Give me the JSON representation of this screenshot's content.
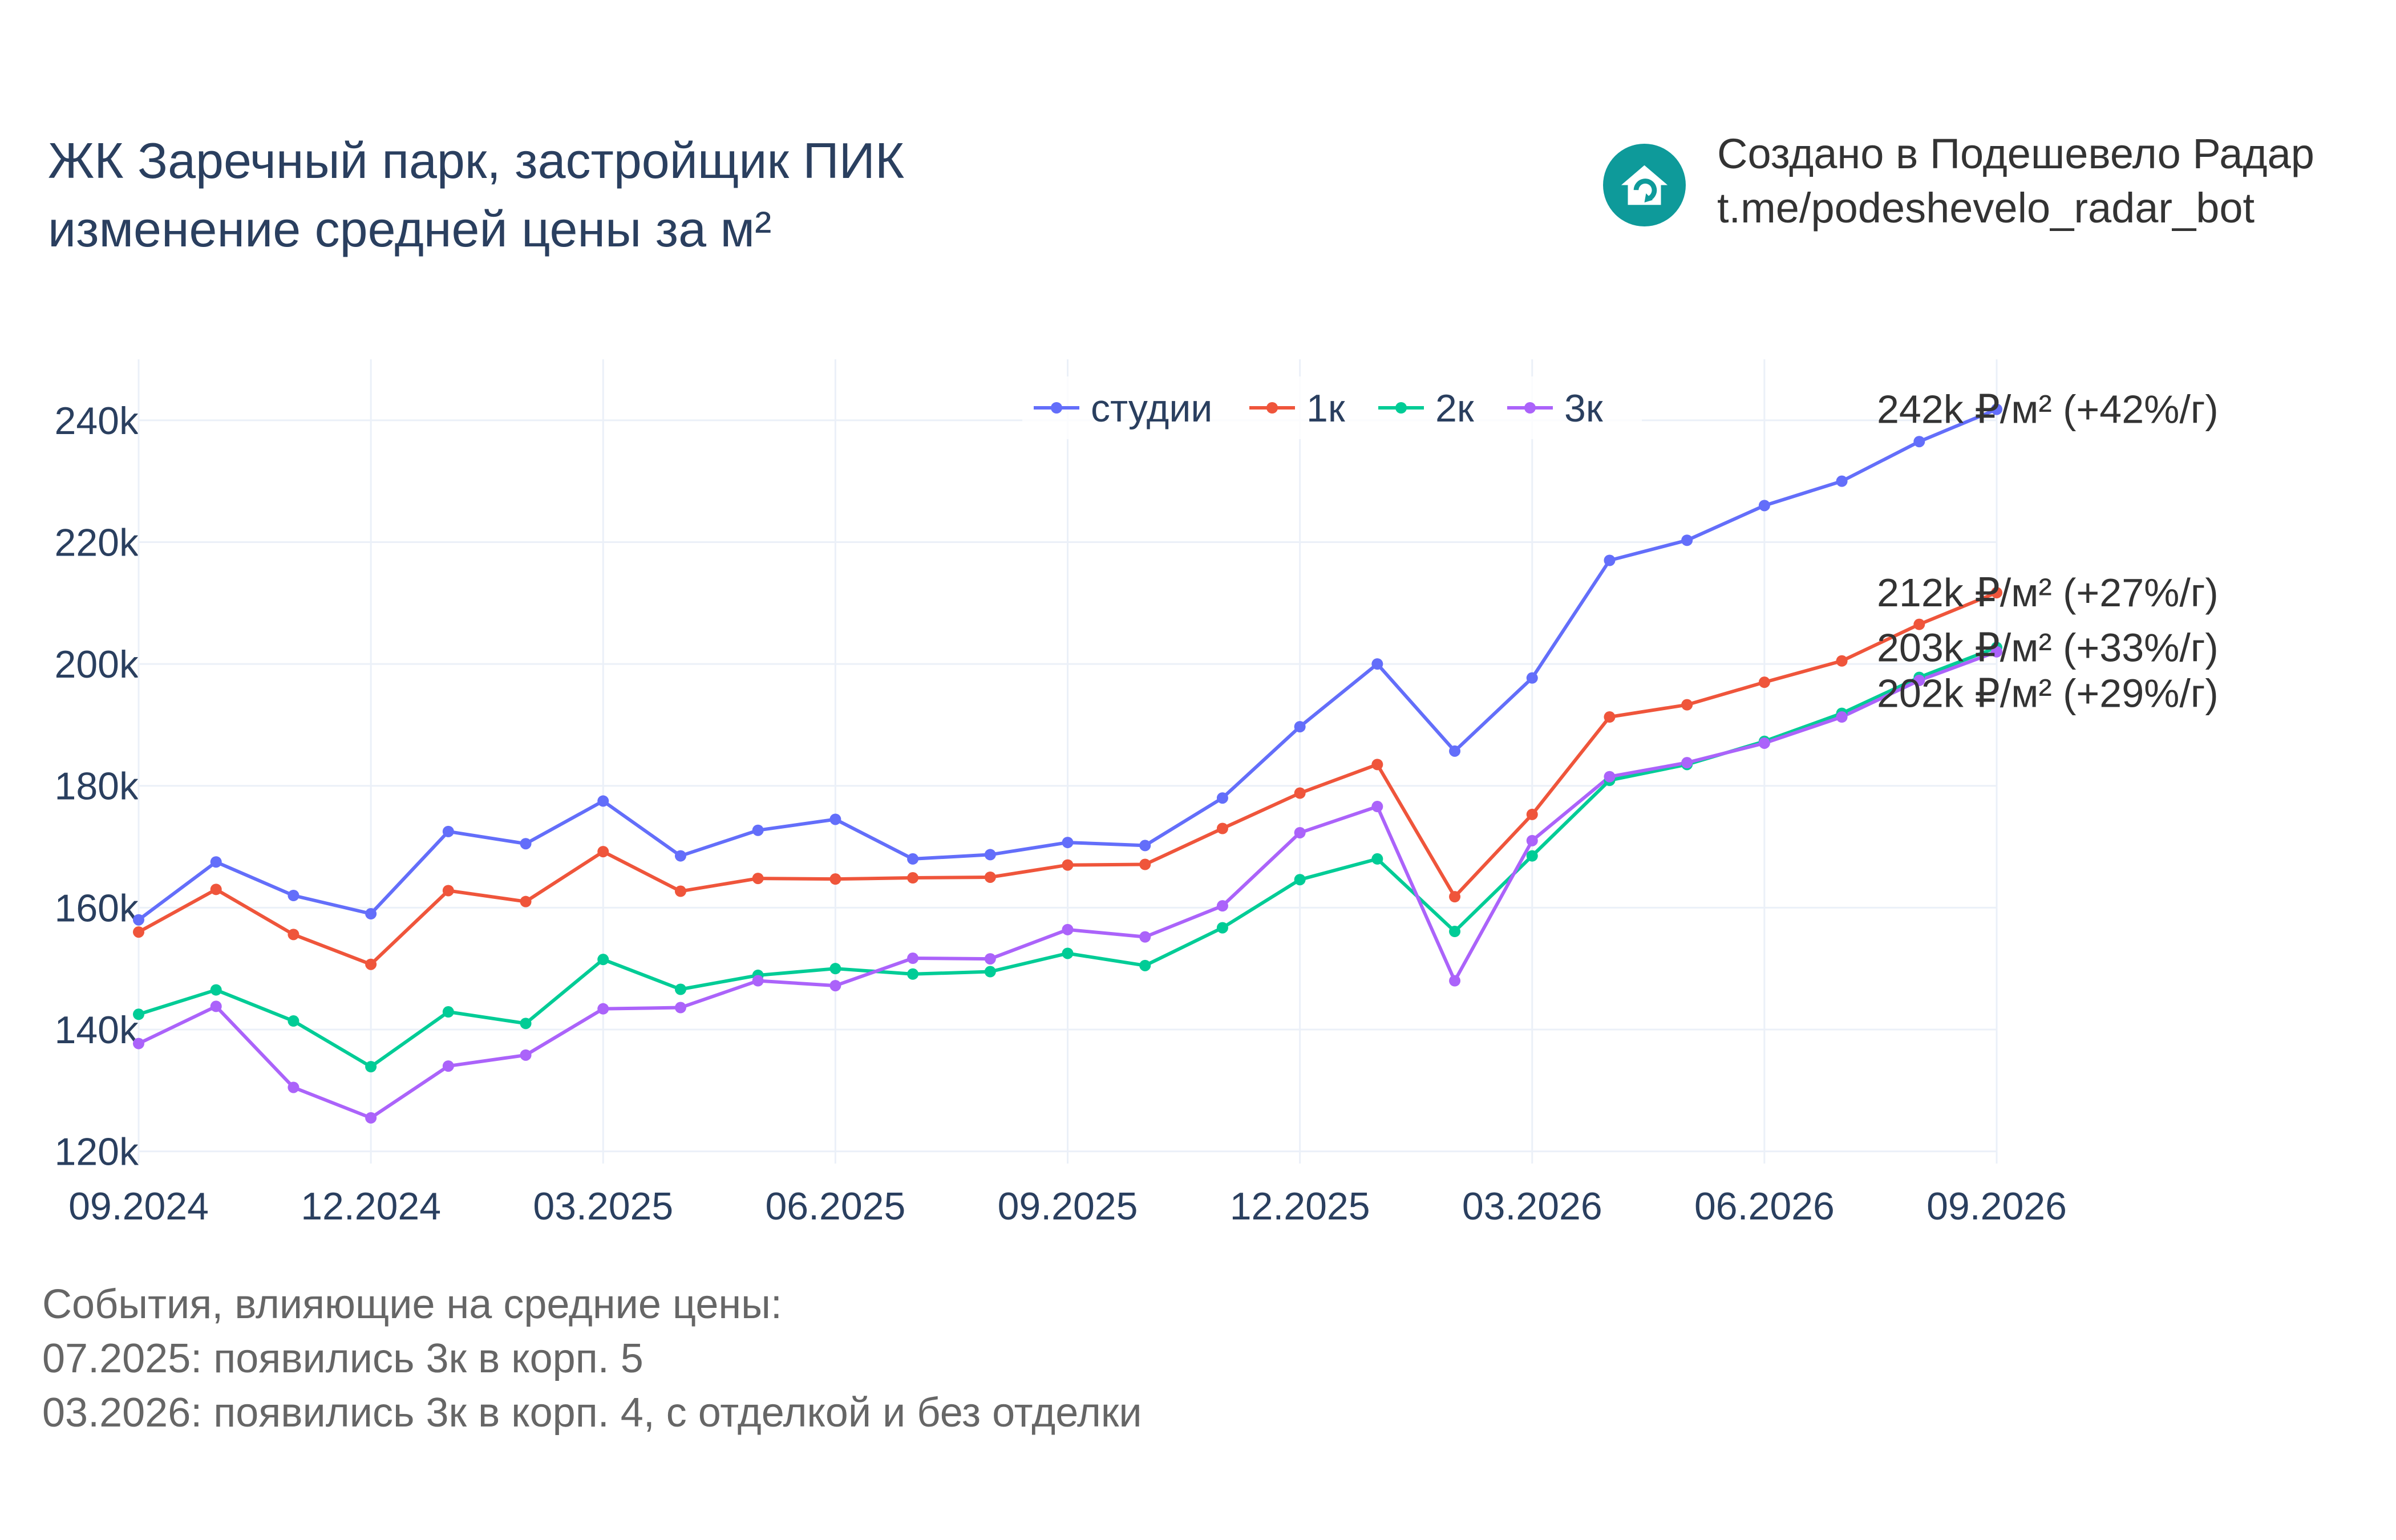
{
  "header": {
    "title_line1": "ЖК Заречный парк, застройщик ПИК",
    "title_line2": "изменение средней цены за м²",
    "credit_line1": "Создано в Подешевело Радар",
    "credit_line2": "t.me/podeshevelo_radar_bot",
    "logo_icon": "house-refresh-icon",
    "logo_color": "#0e9a9a"
  },
  "events": {
    "heading": "События, влияющие на средние цены:",
    "items": [
      "07.2025: появились 3к в корп. 5",
      "03.2026: появились 3к в корп. 4, с отделкой и без отделки"
    ]
  },
  "chart_data": {
    "type": "line",
    "x": [
      "09.2024",
      "10.2024",
      "11.2024",
      "12.2024",
      "01.2025",
      "02.2025",
      "03.2025",
      "04.2025",
      "05.2025",
      "06.2025",
      "07.2025",
      "08.2025",
      "09.2025",
      "10.2025",
      "11.2025",
      "12.2025",
      "01.2026",
      "02.2026",
      "03.2026",
      "04.2026",
      "05.2026",
      "06.2026",
      "07.2026",
      "08.2026",
      "09.2026"
    ],
    "x_tick_labels": [
      "09.2024",
      "12.2024",
      "03.2025",
      "06.2025",
      "09.2025",
      "12.2025",
      "03.2026",
      "06.2026",
      "09.2026"
    ],
    "y_tick_values": [
      120000,
      140000,
      160000,
      180000,
      200000,
      220000,
      240000
    ],
    "y_tick_labels": [
      "120k",
      "140k",
      "160k",
      "180k",
      "200k",
      "220k",
      "240k"
    ],
    "ylim": [
      118000,
      250000
    ],
    "grid": true,
    "legend_position": "top-center",
    "series": [
      {
        "name": "студии",
        "color": "#636efa",
        "end_label": "242k ₽/м² (+42%/г)",
        "values": [
          158000,
          167500,
          162000,
          159000,
          172500,
          170500,
          177500,
          168500,
          172700,
          174500,
          168000,
          168700,
          170700,
          170200,
          178000,
          189700,
          200000,
          185700,
          197700,
          217000,
          220300,
          226000,
          230000,
          236500,
          241800
        ]
      },
      {
        "name": "1к",
        "color": "#ef553b",
        "end_label": "212k ₽/м² (+27%/г)",
        "values": [
          156000,
          163000,
          155600,
          150700,
          162800,
          161000,
          169200,
          162700,
          164800,
          164700,
          164900,
          165000,
          167000,
          167100,
          173000,
          178800,
          183500,
          161800,
          175300,
          191300,
          193300,
          197000,
          200500,
          206500,
          211700
        ]
      },
      {
        "name": "2к",
        "color": "#00cc96",
        "end_label": "203k ₽/м² (+33%/г)",
        "values": [
          142500,
          146500,
          141400,
          133900,
          142900,
          141000,
          151500,
          146600,
          148900,
          150000,
          149100,
          149500,
          152500,
          150500,
          156700,
          164600,
          168000,
          156100,
          168500,
          180900,
          183500,
          187300,
          191900,
          197800,
          202700
        ]
      },
      {
        "name": "3к",
        "color": "#ab63fa",
        "end_label": "202k ₽/м² (+29%/г)",
        "values": [
          137700,
          143800,
          130500,
          125500,
          134000,
          135800,
          143400,
          143600,
          148000,
          147200,
          151700,
          151600,
          156400,
          155200,
          160300,
          172300,
          176600,
          148000,
          171000,
          181500,
          183800,
          187000,
          191300,
          197300,
          202000
        ]
      }
    ]
  }
}
